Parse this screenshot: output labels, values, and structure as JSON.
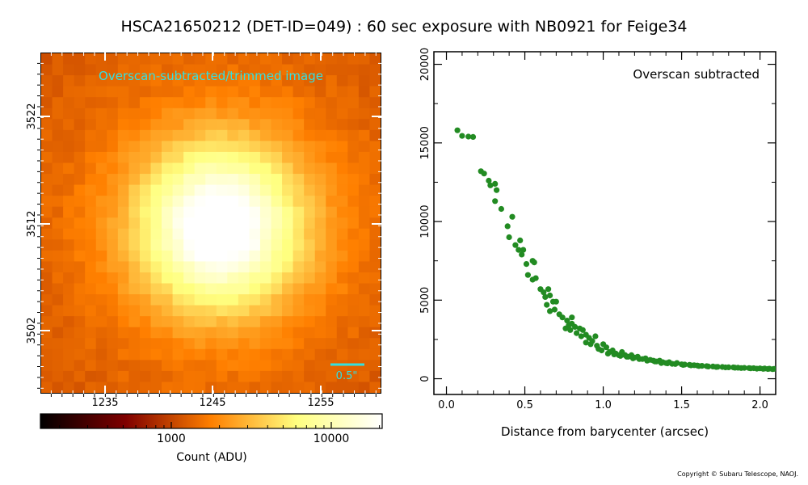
{
  "title": "HSCA21650212 (DET-ID=049) :  60 sec exposure with NB0921 for Feige34",
  "footer": "Copyright © Subaru Telescope, NAOJ.",
  "image_panel": {
    "overlay_label": "Overscan-subtracted/trimmed image",
    "scale_bar_label": "0.5\"",
    "x_ticks": [
      "1235",
      "1245",
      "1255"
    ],
    "y_ticks": [
      "3522",
      "3512",
      "3502"
    ],
    "colors": {
      "overlay": "#33e0e0",
      "scale_bar": "#33e0e0"
    }
  },
  "colorbar": {
    "ticks": [
      "1000",
      "10000"
    ],
    "label": "Count (ADU)",
    "colormap": "afmhot"
  },
  "chart_data": {
    "type": "scatter",
    "annotation": "Overscan subtracted",
    "xlabel": "Distance from barycenter (arcsec)",
    "ylabel": "",
    "xlim": [
      -0.08,
      2.1
    ],
    "ylim": [
      -1000,
      20800
    ],
    "x_ticks": [
      "0.0",
      "0.5",
      "1.0",
      "1.5",
      "2.0"
    ],
    "y_ticks": [
      "0",
      "5000",
      "10000",
      "15000",
      "20000"
    ],
    "marker_color": "#228B22",
    "series": [
      {
        "points": [
          [
            0.07,
            15800
          ],
          [
            0.1,
            15450
          ],
          [
            0.14,
            15400
          ],
          [
            0.17,
            15380
          ],
          [
            0.22,
            13200
          ],
          [
            0.24,
            13050
          ],
          [
            0.27,
            12600
          ],
          [
            0.28,
            12300
          ],
          [
            0.31,
            12400
          ],
          [
            0.32,
            12000
          ],
          [
            0.31,
            11300
          ],
          [
            0.35,
            10800
          ],
          [
            0.39,
            9700
          ],
          [
            0.42,
            10300
          ],
          [
            0.4,
            9000
          ],
          [
            0.44,
            8500
          ],
          [
            0.47,
            8800
          ],
          [
            0.46,
            8200
          ],
          [
            0.49,
            8200
          ],
          [
            0.48,
            7900
          ],
          [
            0.51,
            7300
          ],
          [
            0.55,
            7500
          ],
          [
            0.56,
            7400
          ],
          [
            0.52,
            6600
          ],
          [
            0.57,
            6400
          ],
          [
            0.55,
            6300
          ],
          [
            0.6,
            5700
          ],
          [
            0.62,
            5500
          ],
          [
            0.63,
            5200
          ],
          [
            0.65,
            5700
          ],
          [
            0.66,
            5300
          ],
          [
            0.68,
            4900
          ],
          [
            0.7,
            4900
          ],
          [
            0.64,
            4700
          ],
          [
            0.69,
            4400
          ],
          [
            0.66,
            4300
          ],
          [
            0.72,
            4100
          ],
          [
            0.74,
            3900
          ],
          [
            0.77,
            3700
          ],
          [
            0.78,
            3400
          ],
          [
            0.8,
            3900
          ],
          [
            0.8,
            3500
          ],
          [
            0.76,
            3200
          ],
          [
            0.79,
            3100
          ],
          [
            0.82,
            3300
          ],
          [
            0.85,
            3200
          ],
          [
            0.87,
            3100
          ],
          [
            0.83,
            2900
          ],
          [
            0.86,
            2700
          ],
          [
            0.89,
            2800
          ],
          [
            0.91,
            2600
          ],
          [
            0.93,
            2400
          ],
          [
            0.95,
            2700
          ],
          [
            0.89,
            2300
          ],
          [
            0.92,
            2200
          ],
          [
            0.96,
            2100
          ],
          [
            0.97,
            1900
          ],
          [
            1.0,
            2200
          ],
          [
            1.02,
            2000
          ],
          [
            0.99,
            1800
          ],
          [
            1.04,
            1700
          ],
          [
            1.06,
            1800
          ],
          [
            1.08,
            1600
          ],
          [
            1.1,
            1500
          ],
          [
            1.12,
            1700
          ],
          [
            1.14,
            1500
          ],
          [
            1.16,
            1400
          ],
          [
            1.18,
            1500
          ],
          [
            1.2,
            1350
          ],
          [
            1.22,
            1400
          ],
          [
            1.25,
            1250
          ],
          [
            1.27,
            1300
          ],
          [
            1.3,
            1200
          ],
          [
            1.32,
            1150
          ],
          [
            1.34,
            1100
          ],
          [
            1.36,
            1150
          ],
          [
            1.38,
            1050
          ],
          [
            1.4,
            1000
          ],
          [
            1.42,
            1050
          ],
          [
            1.44,
            950
          ],
          [
            1.47,
            1000
          ],
          [
            1.5,
            920
          ],
          [
            1.52,
            900
          ],
          [
            1.55,
            880
          ],
          [
            1.58,
            860
          ],
          [
            1.6,
            840
          ],
          [
            1.63,
            820
          ],
          [
            1.66,
            800
          ],
          [
            1.7,
            780
          ],
          [
            1.73,
            760
          ],
          [
            1.76,
            750
          ],
          [
            1.8,
            730
          ],
          [
            1.83,
            720
          ],
          [
            1.86,
            700
          ],
          [
            1.9,
            690
          ],
          [
            1.93,
            680
          ],
          [
            1.96,
            670
          ],
          [
            2.0,
            660
          ],
          [
            2.03,
            650
          ],
          [
            2.06,
            640
          ],
          [
            2.09,
            630
          ],
          [
            1.03,
            1600
          ],
          [
            1.07,
            1550
          ],
          [
            1.11,
            1450
          ],
          [
            1.15,
            1400
          ],
          [
            1.19,
            1300
          ],
          [
            1.23,
            1250
          ],
          [
            1.28,
            1150
          ],
          [
            1.33,
            1100
          ],
          [
            1.37,
            1000
          ],
          [
            1.41,
            980
          ],
          [
            1.46,
            940
          ],
          [
            1.51,
            880
          ],
          [
            1.56,
            850
          ],
          [
            1.61,
            810
          ],
          [
            1.67,
            780
          ],
          [
            1.72,
            750
          ],
          [
            1.78,
            720
          ],
          [
            1.84,
            700
          ],
          [
            1.88,
            680
          ],
          [
            1.94,
            660
          ],
          [
            1.98,
            640
          ],
          [
            2.02,
            630
          ],
          [
            2.05,
            620
          ],
          [
            2.08,
            610
          ]
        ]
      }
    ]
  }
}
